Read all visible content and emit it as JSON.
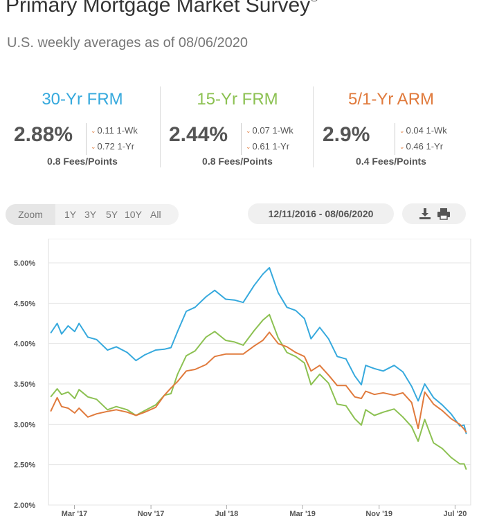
{
  "header": {
    "title": "Primary Mortgage Market Survey",
    "title_mark": "®",
    "subtitle": "U.S. weekly averages as of 08/06/2020"
  },
  "rates": [
    {
      "name": "30-Yr FRM",
      "color": "#36a9dd",
      "value": "2.88%",
      "wk": "0.11 1-Wk",
      "yr": "0.72 1-Yr",
      "fees": "0.8 Fees/Points"
    },
    {
      "name": "15-Yr FRM",
      "color": "#8cc152",
      "value": "2.44%",
      "wk": "0.07 1-Wk",
      "yr": "0.61 1-Yr",
      "fees": "0.8 Fees/Points"
    },
    {
      "name": "5/1-Yr ARM",
      "color": "#e07a3c",
      "value": "2.9%",
      "wk": "0.04 1-Wk",
      "yr": "0.46 1-Yr",
      "fees": "0.4 Fees/Points"
    }
  ],
  "change_direction_icon": "chevron-down-icon",
  "zoom": {
    "label": "Zoom",
    "options": [
      "1Y",
      "3Y",
      "5Y",
      "10Y",
      "All"
    ]
  },
  "date_range": "12/11/2016 - 08/06/2020",
  "tools": {
    "download_icon": "download-icon",
    "print_icon": "print-icon"
  },
  "chart_data": {
    "type": "line",
    "title": "",
    "xlabel": "",
    "ylabel": "",
    "grid": "horizontal",
    "legend": "none",
    "y_ticks": [
      2.0,
      2.5,
      3.0,
      3.5,
      4.0,
      4.5,
      5.0
    ],
    "y_tick_labels": [
      "2.00%",
      "2.50%",
      "3.00%",
      "3.50%",
      "4.00%",
      "4.50%",
      "5.00%"
    ],
    "ylim": [
      2.0,
      5.3
    ],
    "xlim": [
      "2016-12-08",
      "2020-08-20"
    ],
    "x_ticks": [
      {
        "date": "2017-03-01",
        "label": "Mar '17"
      },
      {
        "date": "2017-11-01",
        "label": "Nov '17"
      },
      {
        "date": "2018-07-01",
        "label": "Jul '18"
      },
      {
        "date": "2019-03-01",
        "label": "Mar '19"
      },
      {
        "date": "2019-11-01",
        "label": "Nov '19"
      },
      {
        "date": "2020-07-01",
        "label": "Jul '20"
      }
    ],
    "series": [
      {
        "color": "#36a9dd",
        "points": [
          [
            "2016-12-15",
            4.13
          ],
          [
            "2017-01-05",
            4.25
          ],
          [
            "2017-01-19",
            4.12
          ],
          [
            "2017-02-09",
            4.22
          ],
          [
            "2017-03-02",
            4.15
          ],
          [
            "2017-03-16",
            4.25
          ],
          [
            "2017-04-13",
            4.08
          ],
          [
            "2017-05-11",
            4.05
          ],
          [
            "2017-06-15",
            3.92
          ],
          [
            "2017-07-13",
            3.96
          ],
          [
            "2017-08-17",
            3.89
          ],
          [
            "2017-09-14",
            3.79
          ],
          [
            "2017-10-12",
            3.86
          ],
          [
            "2017-11-16",
            3.92
          ],
          [
            "2017-12-14",
            3.93
          ],
          [
            "2018-01-04",
            3.95
          ],
          [
            "2018-01-25",
            4.15
          ],
          [
            "2018-02-22",
            4.4
          ],
          [
            "2018-03-22",
            4.45
          ],
          [
            "2018-04-26",
            4.58
          ],
          [
            "2018-05-24",
            4.66
          ],
          [
            "2018-06-28",
            4.55
          ],
          [
            "2018-07-26",
            4.54
          ],
          [
            "2018-08-23",
            4.51
          ],
          [
            "2018-09-27",
            4.72
          ],
          [
            "2018-10-25",
            4.86
          ],
          [
            "2018-11-15",
            4.94
          ],
          [
            "2018-12-13",
            4.63
          ],
          [
            "2019-01-10",
            4.45
          ],
          [
            "2019-02-07",
            4.41
          ],
          [
            "2019-03-07",
            4.31
          ],
          [
            "2019-03-28",
            4.06
          ],
          [
            "2019-04-25",
            4.2
          ],
          [
            "2019-05-23",
            4.06
          ],
          [
            "2019-06-20",
            3.84
          ],
          [
            "2019-07-18",
            3.81
          ],
          [
            "2019-08-15",
            3.6
          ],
          [
            "2019-09-05",
            3.49
          ],
          [
            "2019-09-19",
            3.73
          ],
          [
            "2019-10-17",
            3.69
          ],
          [
            "2019-11-14",
            3.66
          ],
          [
            "2019-12-19",
            3.73
          ],
          [
            "2020-01-16",
            3.65
          ],
          [
            "2020-02-13",
            3.47
          ],
          [
            "2020-03-05",
            3.29
          ],
          [
            "2020-03-26",
            3.5
          ],
          [
            "2020-04-23",
            3.33
          ],
          [
            "2020-05-21",
            3.24
          ],
          [
            "2020-06-18",
            3.13
          ],
          [
            "2020-07-16",
            2.98
          ],
          [
            "2020-07-30",
            2.99
          ],
          [
            "2020-08-06",
            2.88
          ]
        ]
      },
      {
        "color": "#8cc152",
        "points": [
          [
            "2016-12-15",
            3.34
          ],
          [
            "2017-01-05",
            3.44
          ],
          [
            "2017-01-19",
            3.37
          ],
          [
            "2017-02-09",
            3.4
          ],
          [
            "2017-03-02",
            3.32
          ],
          [
            "2017-03-16",
            3.43
          ],
          [
            "2017-04-13",
            3.34
          ],
          [
            "2017-05-11",
            3.31
          ],
          [
            "2017-06-15",
            3.18
          ],
          [
            "2017-07-13",
            3.22
          ],
          [
            "2017-08-17",
            3.18
          ],
          [
            "2017-09-14",
            3.11
          ],
          [
            "2017-10-12",
            3.17
          ],
          [
            "2017-11-16",
            3.24
          ],
          [
            "2017-12-14",
            3.36
          ],
          [
            "2018-01-04",
            3.38
          ],
          [
            "2018-01-25",
            3.62
          ],
          [
            "2018-02-22",
            3.85
          ],
          [
            "2018-03-22",
            3.91
          ],
          [
            "2018-04-26",
            4.08
          ],
          [
            "2018-05-24",
            4.15
          ],
          [
            "2018-06-28",
            4.04
          ],
          [
            "2018-07-26",
            4.02
          ],
          [
            "2018-08-23",
            3.98
          ],
          [
            "2018-09-27",
            4.16
          ],
          [
            "2018-10-25",
            4.29
          ],
          [
            "2018-11-15",
            4.36
          ],
          [
            "2018-12-13",
            4.07
          ],
          [
            "2019-01-10",
            3.89
          ],
          [
            "2019-02-07",
            3.84
          ],
          [
            "2019-03-07",
            3.76
          ],
          [
            "2019-03-28",
            3.49
          ],
          [
            "2019-04-25",
            3.62
          ],
          [
            "2019-05-23",
            3.51
          ],
          [
            "2019-06-20",
            3.25
          ],
          [
            "2019-07-18",
            3.23
          ],
          [
            "2019-08-15",
            3.07
          ],
          [
            "2019-09-05",
            2.99
          ],
          [
            "2019-09-19",
            3.18
          ],
          [
            "2019-10-17",
            3.11
          ],
          [
            "2019-11-14",
            3.15
          ],
          [
            "2019-12-19",
            3.19
          ],
          [
            "2020-01-16",
            3.09
          ],
          [
            "2020-02-13",
            2.97
          ],
          [
            "2020-03-05",
            2.79
          ],
          [
            "2020-03-26",
            3.06
          ],
          [
            "2020-04-23",
            2.77
          ],
          [
            "2020-05-21",
            2.7
          ],
          [
            "2020-06-18",
            2.59
          ],
          [
            "2020-07-16",
            2.51
          ],
          [
            "2020-07-30",
            2.51
          ],
          [
            "2020-08-06",
            2.44
          ]
        ]
      },
      {
        "color": "#e07a3c",
        "points": [
          [
            "2016-12-15",
            3.16
          ],
          [
            "2017-01-05",
            3.33
          ],
          [
            "2017-01-19",
            3.22
          ],
          [
            "2017-02-09",
            3.2
          ],
          [
            "2017-03-02",
            3.14
          ],
          [
            "2017-03-16",
            3.2
          ],
          [
            "2017-04-13",
            3.09
          ],
          [
            "2017-05-11",
            3.13
          ],
          [
            "2017-06-15",
            3.16
          ],
          [
            "2017-07-13",
            3.18
          ],
          [
            "2017-08-17",
            3.15
          ],
          [
            "2017-09-14",
            3.11
          ],
          [
            "2017-10-12",
            3.15
          ],
          [
            "2017-11-16",
            3.21
          ],
          [
            "2017-12-14",
            3.36
          ],
          [
            "2018-01-04",
            3.45
          ],
          [
            "2018-01-25",
            3.53
          ],
          [
            "2018-02-22",
            3.66
          ],
          [
            "2018-03-22",
            3.68
          ],
          [
            "2018-04-26",
            3.74
          ],
          [
            "2018-05-24",
            3.84
          ],
          [
            "2018-06-28",
            3.87
          ],
          [
            "2018-07-26",
            3.87
          ],
          [
            "2018-08-23",
            3.87
          ],
          [
            "2018-09-27",
            3.97
          ],
          [
            "2018-10-25",
            4.04
          ],
          [
            "2018-11-15",
            4.14
          ],
          [
            "2018-12-13",
            4.0
          ],
          [
            "2019-01-10",
            3.96
          ],
          [
            "2019-02-07",
            3.89
          ],
          [
            "2019-03-07",
            3.84
          ],
          [
            "2019-03-28",
            3.66
          ],
          [
            "2019-04-25",
            3.73
          ],
          [
            "2019-05-23",
            3.61
          ],
          [
            "2019-06-20",
            3.48
          ],
          [
            "2019-07-18",
            3.48
          ],
          [
            "2019-08-15",
            3.34
          ],
          [
            "2019-09-05",
            3.32
          ],
          [
            "2019-09-19",
            3.41
          ],
          [
            "2019-10-17",
            3.37
          ],
          [
            "2019-11-14",
            3.39
          ],
          [
            "2019-12-19",
            3.36
          ],
          [
            "2020-01-16",
            3.39
          ],
          [
            "2020-02-13",
            3.27
          ],
          [
            "2020-03-05",
            2.95
          ],
          [
            "2020-03-26",
            3.4
          ],
          [
            "2020-04-23",
            3.25
          ],
          [
            "2020-05-21",
            3.17
          ],
          [
            "2020-06-18",
            3.07
          ],
          [
            "2020-07-16",
            3.0
          ],
          [
            "2020-07-30",
            2.94
          ],
          [
            "2020-08-06",
            2.9
          ]
        ]
      }
    ]
  }
}
